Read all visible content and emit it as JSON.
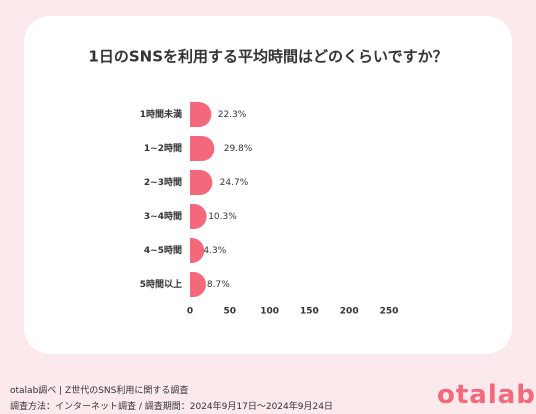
{
  "chart_data": {
    "type": "bar",
    "orientation": "horizontal",
    "title": "1日のSNSを利用する平均時間はどのくらいですか？",
    "categories": [
      "1時間未満",
      "1~2時間",
      "2~3時間",
      "3~4時間",
      "4~5時間",
      "5時間以上"
    ],
    "values": [
      22.3,
      29.8,
      24.7,
      10.3,
      4.3,
      8.7
    ],
    "value_labels": [
      "22.3%",
      "29.8%",
      "24.7%",
      "10.3%",
      "4.3%",
      "8.7%"
    ],
    "xlim": [
      0,
      250
    ],
    "xticks": [
      0,
      50,
      100,
      150,
      200,
      250
    ],
    "grid": false,
    "legend": "none",
    "bar_color": "#f4687c"
  },
  "footer": {
    "source": "otalab調べ | Z世代のSNS利用に関する調査",
    "method": "調査方法：インターネット調査 / 調査期間：2024年9月17日〜2024年9月24日"
  },
  "logo": {
    "text": "otalab",
    "color": "#f4687c"
  }
}
